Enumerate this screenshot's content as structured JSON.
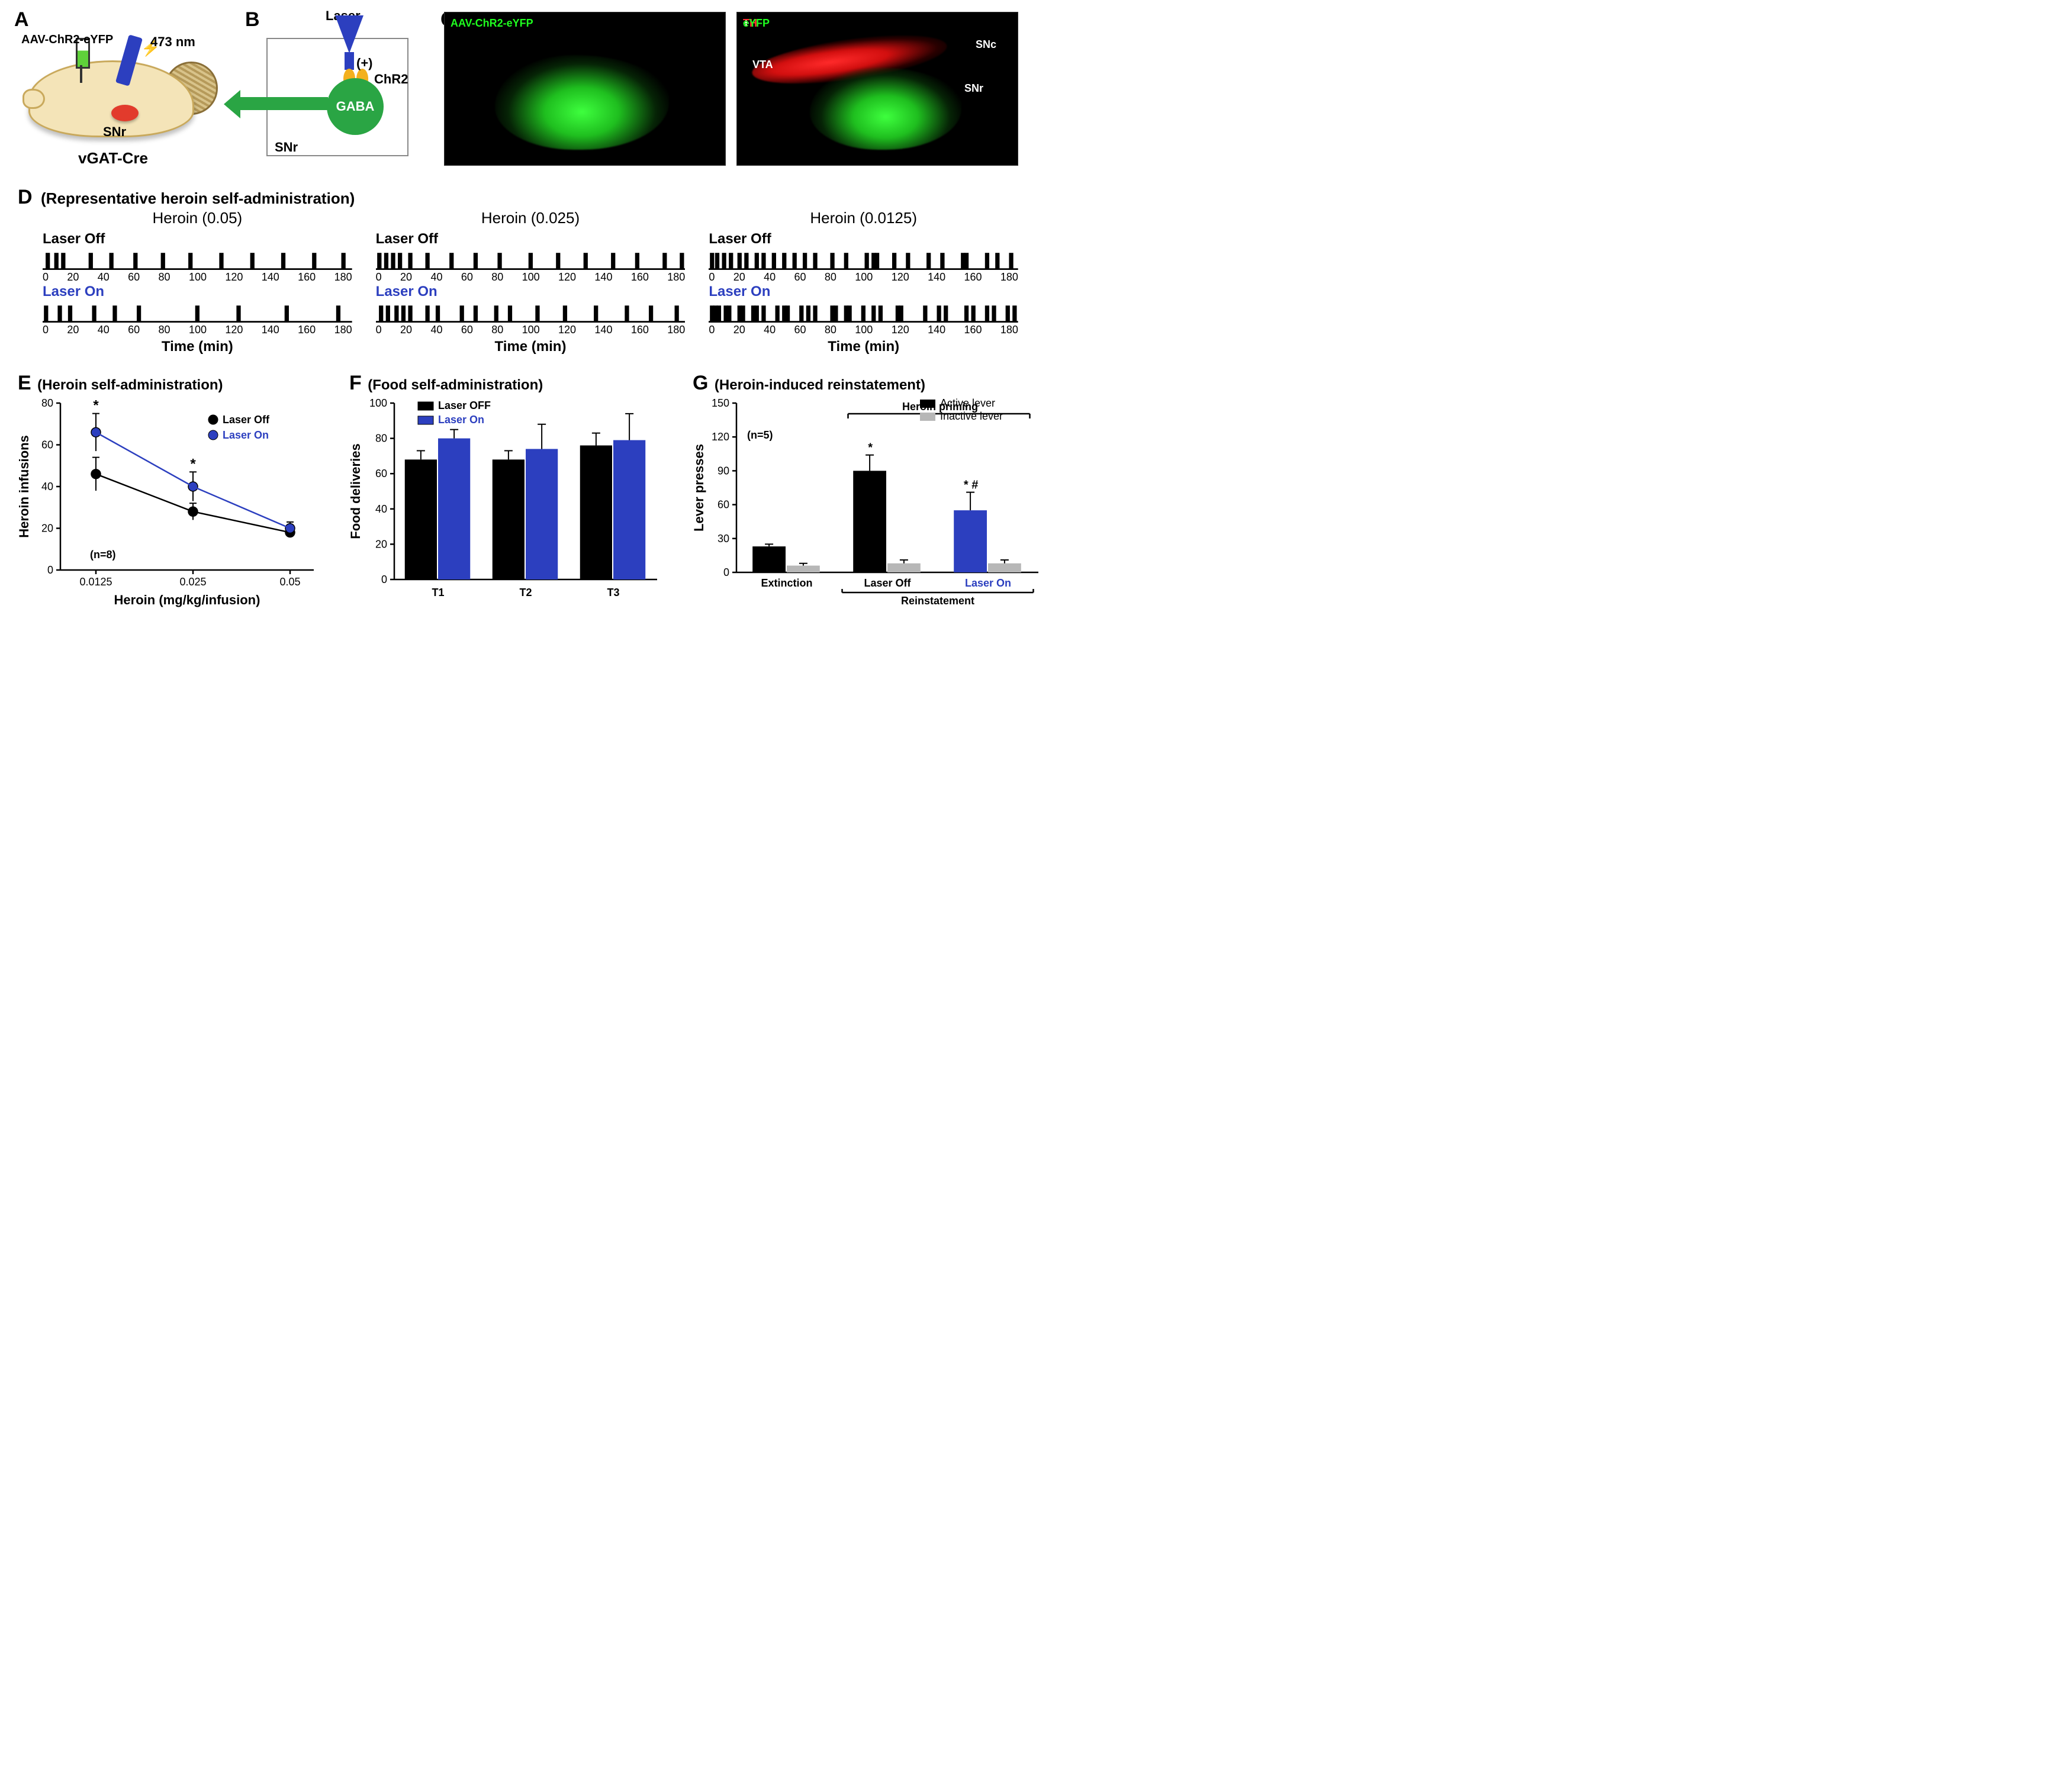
{
  "colors": {
    "laser_on": "#2c3fbf",
    "laser_off": "#000000",
    "inactive": "#b7b7b7",
    "gaba_green": "#2aa544",
    "chr2_orange": "#f3b01d",
    "fluor_green": "#1fff1f",
    "fluor_red": "#ff3333",
    "brain_fill": "#f4e4b8",
    "snr_red": "#e23b2c",
    "background": "#ffffff",
    "axis": "#000000"
  },
  "typography": {
    "panel_label_pt": 28,
    "title_pt": 20,
    "axis_label_pt": 18,
    "tick_label_pt": 15,
    "font_family": "Arial"
  },
  "panelA": {
    "label": "A",
    "virus_label": "AAV-ChR2-eYFP",
    "wavelength_label": "473 nm",
    "region_label": "SNr",
    "mouse_line_label": "vGAT-Cre"
  },
  "panelB": {
    "label": "B",
    "laser_label": "Laser",
    "channel_label": "ChR2",
    "plus_label": "(+)",
    "neuron_label": "GABA",
    "region_label": "SNr"
  },
  "panelC": {
    "label": "C",
    "left_label": "AAV-ChR2-eYFP",
    "right_th": "TH",
    "right_plus": " + ",
    "right_eyfp": "eYFP",
    "lbl_vta": "VTA",
    "lbl_snc": "SNc",
    "lbl_snr": "SNr"
  },
  "panelD": {
    "label": "D",
    "title": "(Representative heroin self-administration)",
    "off_label": "Laser Off",
    "on_label": "Laser On",
    "time_label": "Time (min)",
    "x_ticks": [
      "0",
      "20",
      "40",
      "60",
      "80",
      "100",
      "120",
      "140",
      "160",
      "180"
    ],
    "x_max": 180,
    "raster_tick_height": 20,
    "columns": [
      {
        "dose_label": "Heroin (0.05)",
        "off_events": [
          3,
          8,
          12,
          28,
          40,
          54,
          70,
          86,
          104,
          122,
          140,
          158,
          175
        ],
        "on_events": [
          2,
          10,
          16,
          30,
          42,
          56,
          90,
          114,
          142,
          172
        ]
      },
      {
        "dose_label": "Heroin (0.025)",
        "off_events": [
          2,
          6,
          10,
          14,
          20,
          30,
          44,
          58,
          72,
          90,
          106,
          122,
          138,
          152,
          168,
          178
        ],
        "on_events": [
          3,
          7,
          12,
          16,
          20,
          30,
          36,
          50,
          58,
          70,
          78,
          94,
          110,
          128,
          146,
          160,
          175
        ]
      },
      {
        "dose_label": "Heroin (0.0125)",
        "off_events": [
          2,
          5,
          9,
          13,
          18,
          22,
          28,
          32,
          38,
          44,
          50,
          56,
          62,
          72,
          80,
          92,
          96,
          98,
          108,
          116,
          128,
          136,
          148,
          150,
          162,
          168,
          176
        ],
        "on_events": [
          2,
          4,
          6,
          10,
          12,
          18,
          20,
          26,
          28,
          32,
          40,
          44,
          46,
          54,
          58,
          62,
          72,
          74,
          80,
          82,
          90,
          96,
          100,
          110,
          112,
          126,
          134,
          138,
          150,
          154,
          162,
          166,
          174,
          178
        ]
      }
    ]
  },
  "panelE": {
    "label": "E",
    "title": "(Heroin self-administration)",
    "type": "line",
    "x_label": "Heroin (mg/kg/infusion)",
    "y_label": "Heroin infusions",
    "n_label": "(n=8)",
    "x_categories": [
      "0.0125",
      "0.025",
      "0.05"
    ],
    "y_lim": [
      0,
      80
    ],
    "y_tick_step": 20,
    "marker_radius": 8,
    "line_width": 2.5,
    "series": [
      {
        "name": "Laser Off",
        "color": "#000000",
        "values": [
          46,
          28,
          18
        ],
        "err": [
          8,
          4,
          2
        ],
        "sig": [
          "",
          "",
          ""
        ]
      },
      {
        "name": "Laser On",
        "color": "#2c3fbf",
        "values": [
          66,
          40,
          20
        ],
        "err": [
          9,
          7,
          3
        ],
        "sig": [
          "*",
          "*",
          ""
        ]
      }
    ],
    "legend": [
      "Laser Off",
      "Laser On"
    ]
  },
  "panelF": {
    "label": "F",
    "title": "(Food self-administration)",
    "type": "bar",
    "x_label": "",
    "y_label": "Food deliveries",
    "x_categories": [
      "T1",
      "T2",
      "T3"
    ],
    "y_lim": [
      0,
      100
    ],
    "y_tick_step": 20,
    "bar_width": 0.38,
    "group_gap": 0.25,
    "series": [
      {
        "name": "Laser OFF",
        "color": "#000000",
        "values": [
          68,
          68,
          76
        ],
        "err": [
          5,
          5,
          7
        ]
      },
      {
        "name": "Laser On",
        "color": "#2c3fbf",
        "values": [
          80,
          74,
          79
        ],
        "err": [
          5,
          14,
          15
        ]
      }
    ],
    "legend": [
      "Laser OFF",
      "Laser On"
    ]
  },
  "panelG": {
    "label": "G",
    "title": "(Heroin-induced reinstatement)",
    "type": "bar",
    "y_label": "Lever presses",
    "n_label": "(n=5)",
    "bracket_label": "Heroin priming",
    "group_bracket": "Reinstatement",
    "x_categories": [
      "Extinction",
      "Laser Off",
      "Laser On"
    ],
    "x_category_colors": [
      "#000000",
      "#000000",
      "#2c3fbf"
    ],
    "y_lim": [
      0,
      150
    ],
    "y_tick_step": 30,
    "bar_width": 0.34,
    "series": [
      {
        "name": "Active lever",
        "color_by_group": [
          "#000000",
          "#000000",
          "#2c3fbf"
        ],
        "values": [
          23,
          90,
          55
        ],
        "err": [
          2,
          14,
          16
        ],
        "sig": [
          "",
          "*",
          "* #"
        ]
      },
      {
        "name": "Inactive lever",
        "color": "#b7b7b7",
        "values": [
          6,
          8,
          8
        ],
        "err": [
          2,
          3,
          3
        ],
        "sig": [
          "",
          "",
          ""
        ]
      }
    ],
    "legend": [
      "Active lever",
      "Inactive lever"
    ]
  }
}
